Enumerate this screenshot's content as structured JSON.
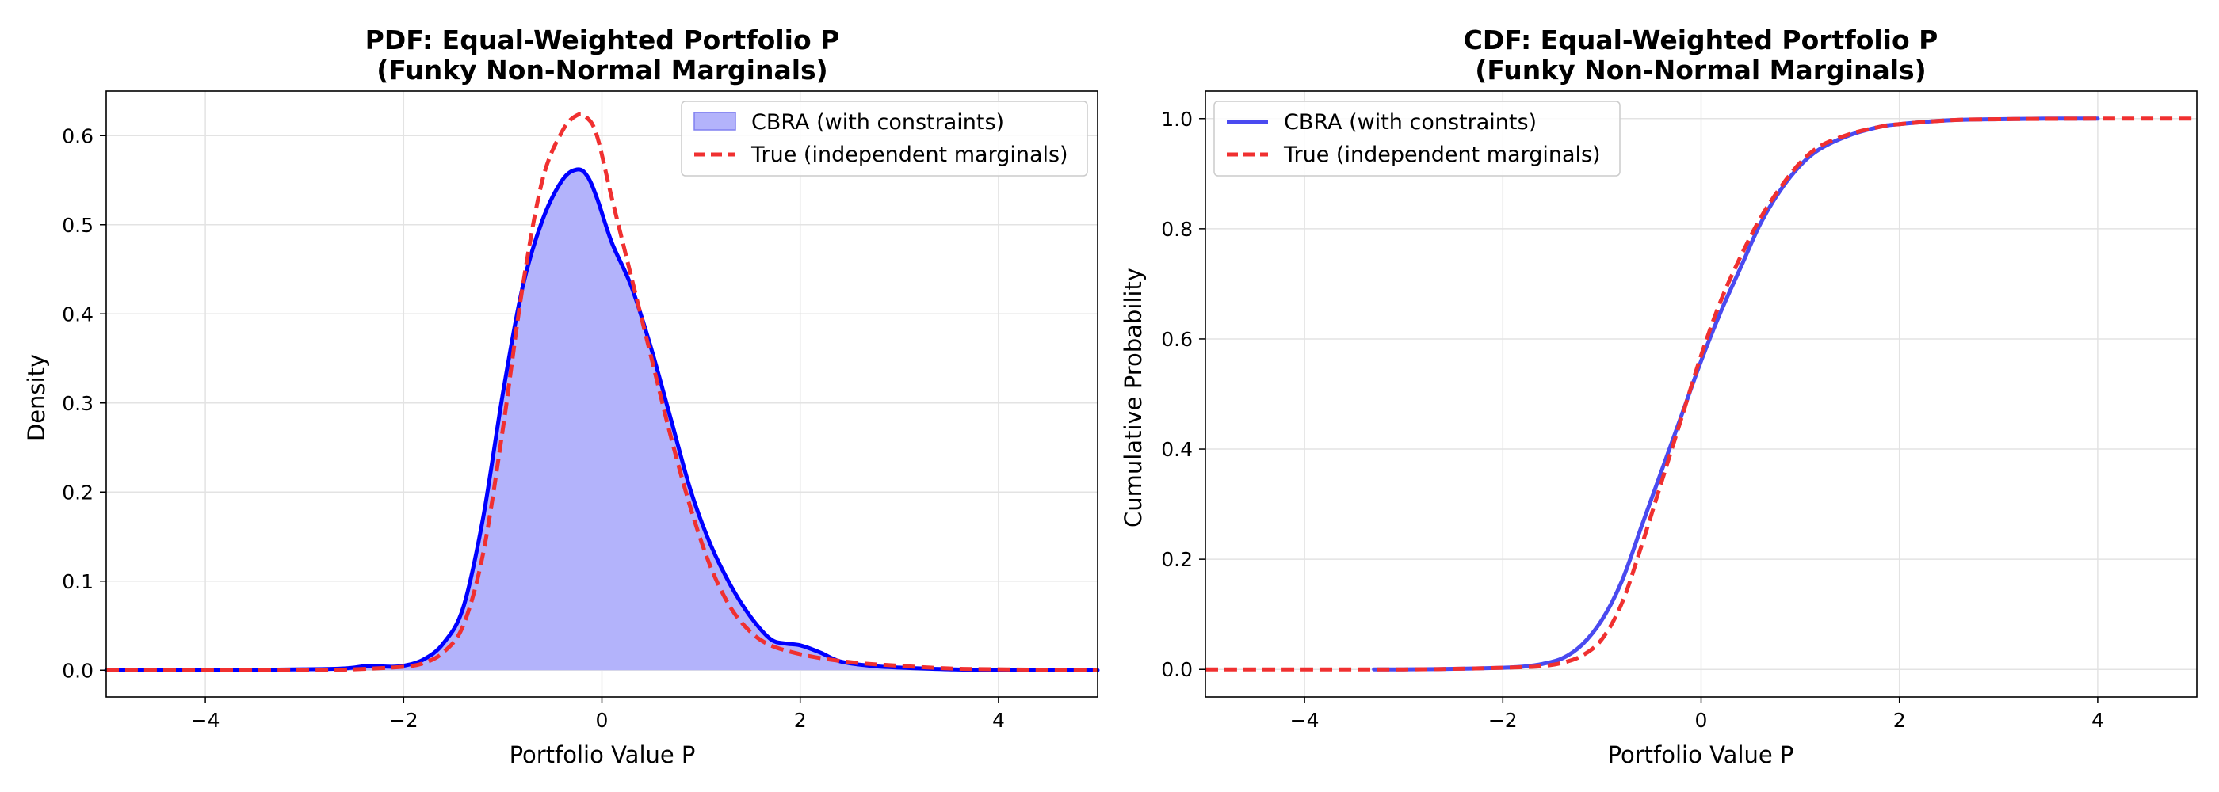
{
  "chart_data": [
    {
      "type": "area",
      "title": "PDF: Equal-Weighted Portfolio P",
      "subtitle": "(Funky Non-Normal Marginals)",
      "xlabel": "Portfolio Value P",
      "ylabel": "Density",
      "xlim": [
        -5,
        5
      ],
      "ylim": [
        -0.03,
        0.65
      ],
      "xticks": [
        -4,
        -2,
        0,
        2,
        4
      ],
      "yticks": [
        0.0,
        0.1,
        0.2,
        0.3,
        0.4,
        0.5,
        0.6
      ],
      "grid": true,
      "legend": "top-right",
      "series": [
        {
          "name": "CBRA (with constraints)",
          "style": "filled",
          "color": "#0000ff",
          "fill": "#b3b3fb",
          "x": [
            -5,
            -4,
            -3,
            -2.6,
            -2.35,
            -2.15,
            -2,
            -1.8,
            -1.6,
            -1.4,
            -1.2,
            -1.0,
            -0.8,
            -0.6,
            -0.4,
            -0.25,
            -0.15,
            -0.05,
            0.1,
            0.3,
            0.5,
            0.7,
            0.9,
            1.1,
            1.3,
            1.5,
            1.7,
            1.85,
            2.0,
            2.2,
            2.4,
            2.7,
            3.0,
            3.5,
            4.0,
            5.0
          ],
          "y": [
            0.0,
            0.0,
            0.001,
            0.002,
            0.005,
            0.004,
            0.005,
            0.012,
            0.03,
            0.07,
            0.17,
            0.31,
            0.43,
            0.505,
            0.55,
            0.562,
            0.555,
            0.53,
            0.48,
            0.43,
            0.36,
            0.28,
            0.2,
            0.14,
            0.095,
            0.06,
            0.035,
            0.03,
            0.028,
            0.02,
            0.01,
            0.005,
            0.003,
            0.001,
            0.0,
            0.0
          ]
        },
        {
          "name": "True (independent marginals)",
          "style": "dashed",
          "color": "#f03030",
          "x": [
            -5,
            -4,
            -3,
            -2.5,
            -2.0,
            -1.8,
            -1.6,
            -1.4,
            -1.2,
            -1.0,
            -0.8,
            -0.6,
            -0.4,
            -0.25,
            -0.15,
            -0.05,
            0.1,
            0.3,
            0.5,
            0.7,
            0.9,
            1.1,
            1.3,
            1.5,
            1.7,
            2.0,
            2.3,
            2.6,
            3.0,
            3.5,
            4.0,
            5.0
          ],
          "y": [
            0.0,
            0.0,
            0.0,
            0.001,
            0.004,
            0.008,
            0.02,
            0.05,
            0.13,
            0.27,
            0.43,
            0.55,
            0.605,
            0.623,
            0.62,
            0.6,
            0.53,
            0.44,
            0.35,
            0.26,
            0.18,
            0.115,
            0.07,
            0.043,
            0.028,
            0.018,
            0.012,
            0.008,
            0.005,
            0.002,
            0.001,
            0.0
          ]
        }
      ]
    },
    {
      "type": "line",
      "title": "CDF: Equal-Weighted Portfolio P",
      "subtitle": "(Funky Non-Normal Marginals)",
      "xlabel": "Portfolio Value P",
      "ylabel": "Cumulative Probability",
      "xlim": [
        -5,
        5
      ],
      "ylim": [
        -0.05,
        1.05
      ],
      "xticks": [
        -4,
        -2,
        0,
        2,
        4
      ],
      "yticks": [
        0.0,
        0.2,
        0.4,
        0.6,
        0.8,
        1.0
      ],
      "grid": true,
      "legend": "top-left",
      "series": [
        {
          "name": "CBRA (with constraints)",
          "style": "solid",
          "color": "#4a4af0",
          "x": [
            -3.3,
            -3.0,
            -2.5,
            -2.0,
            -1.8,
            -1.6,
            -1.4,
            -1.2,
            -1.0,
            -0.8,
            -0.6,
            -0.4,
            -0.2,
            0.0,
            0.2,
            0.4,
            0.6,
            0.8,
            1.0,
            1.2,
            1.5,
            1.8,
            2.0,
            2.5,
            3.0,
            3.5,
            4.0
          ],
          "y": [
            0.0,
            0.0,
            0.001,
            0.003,
            0.005,
            0.01,
            0.02,
            0.045,
            0.09,
            0.16,
            0.26,
            0.36,
            0.46,
            0.56,
            0.65,
            0.73,
            0.81,
            0.87,
            0.915,
            0.945,
            0.97,
            0.985,
            0.99,
            0.997,
            0.999,
            1.0,
            1.0
          ]
        },
        {
          "name": "True (independent marginals)",
          "style": "dashed",
          "color": "#f03030",
          "x": [
            -5.0,
            -4.0,
            -3.0,
            -2.5,
            -2.0,
            -1.8,
            -1.6,
            -1.4,
            -1.2,
            -1.0,
            -0.8,
            -0.6,
            -0.4,
            -0.2,
            0.0,
            0.2,
            0.4,
            0.6,
            0.8,
            1.0,
            1.2,
            1.5,
            1.8,
            2.0,
            2.5,
            3.0,
            4.0,
            5.0
          ],
          "y": [
            0.0,
            0.0,
            0.0,
            0.001,
            0.003,
            0.004,
            0.006,
            0.012,
            0.025,
            0.055,
            0.12,
            0.225,
            0.34,
            0.455,
            0.57,
            0.67,
            0.75,
            0.82,
            0.875,
            0.92,
            0.95,
            0.972,
            0.985,
            0.99,
            0.997,
            0.999,
            1.0,
            1.0
          ]
        }
      ]
    }
  ]
}
